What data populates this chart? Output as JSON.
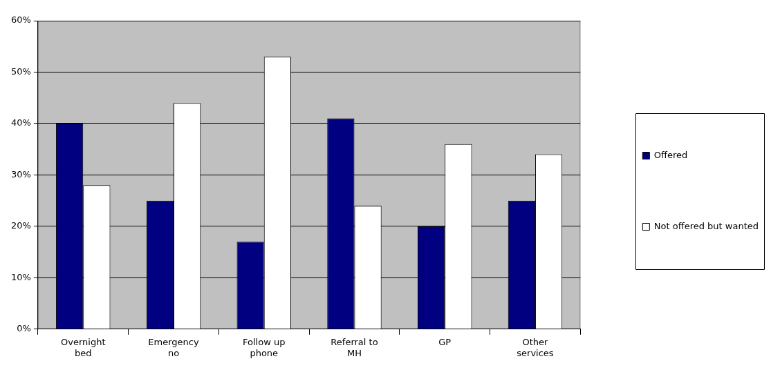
{
  "chart_data": {
    "type": "bar",
    "categories": [
      "Overnight bed",
      "Emergency no",
      "Follow up phone",
      "Referral to MH",
      "GP",
      "Other services"
    ],
    "series": [
      {
        "name": "Offered",
        "color": "#000080",
        "values": [
          40,
          25,
          17,
          41,
          20,
          25
        ]
      },
      {
        "name": "Not offered but wanted",
        "color": "#ffffff",
        "values": [
          28,
          44,
          53,
          24,
          36,
          34
        ]
      }
    ],
    "ylim": [
      0,
      60
    ],
    "yticks": [
      {
        "value": 0,
        "label": "0%"
      },
      {
        "value": 10,
        "label": "10%"
      },
      {
        "value": 20,
        "label": "20%"
      },
      {
        "value": 30,
        "label": "30%"
      },
      {
        "value": 40,
        "label": "40%"
      },
      {
        "value": 50,
        "label": "50%"
      },
      {
        "value": 60,
        "label": "60%"
      }
    ],
    "grid": "y",
    "legend": "right"
  }
}
